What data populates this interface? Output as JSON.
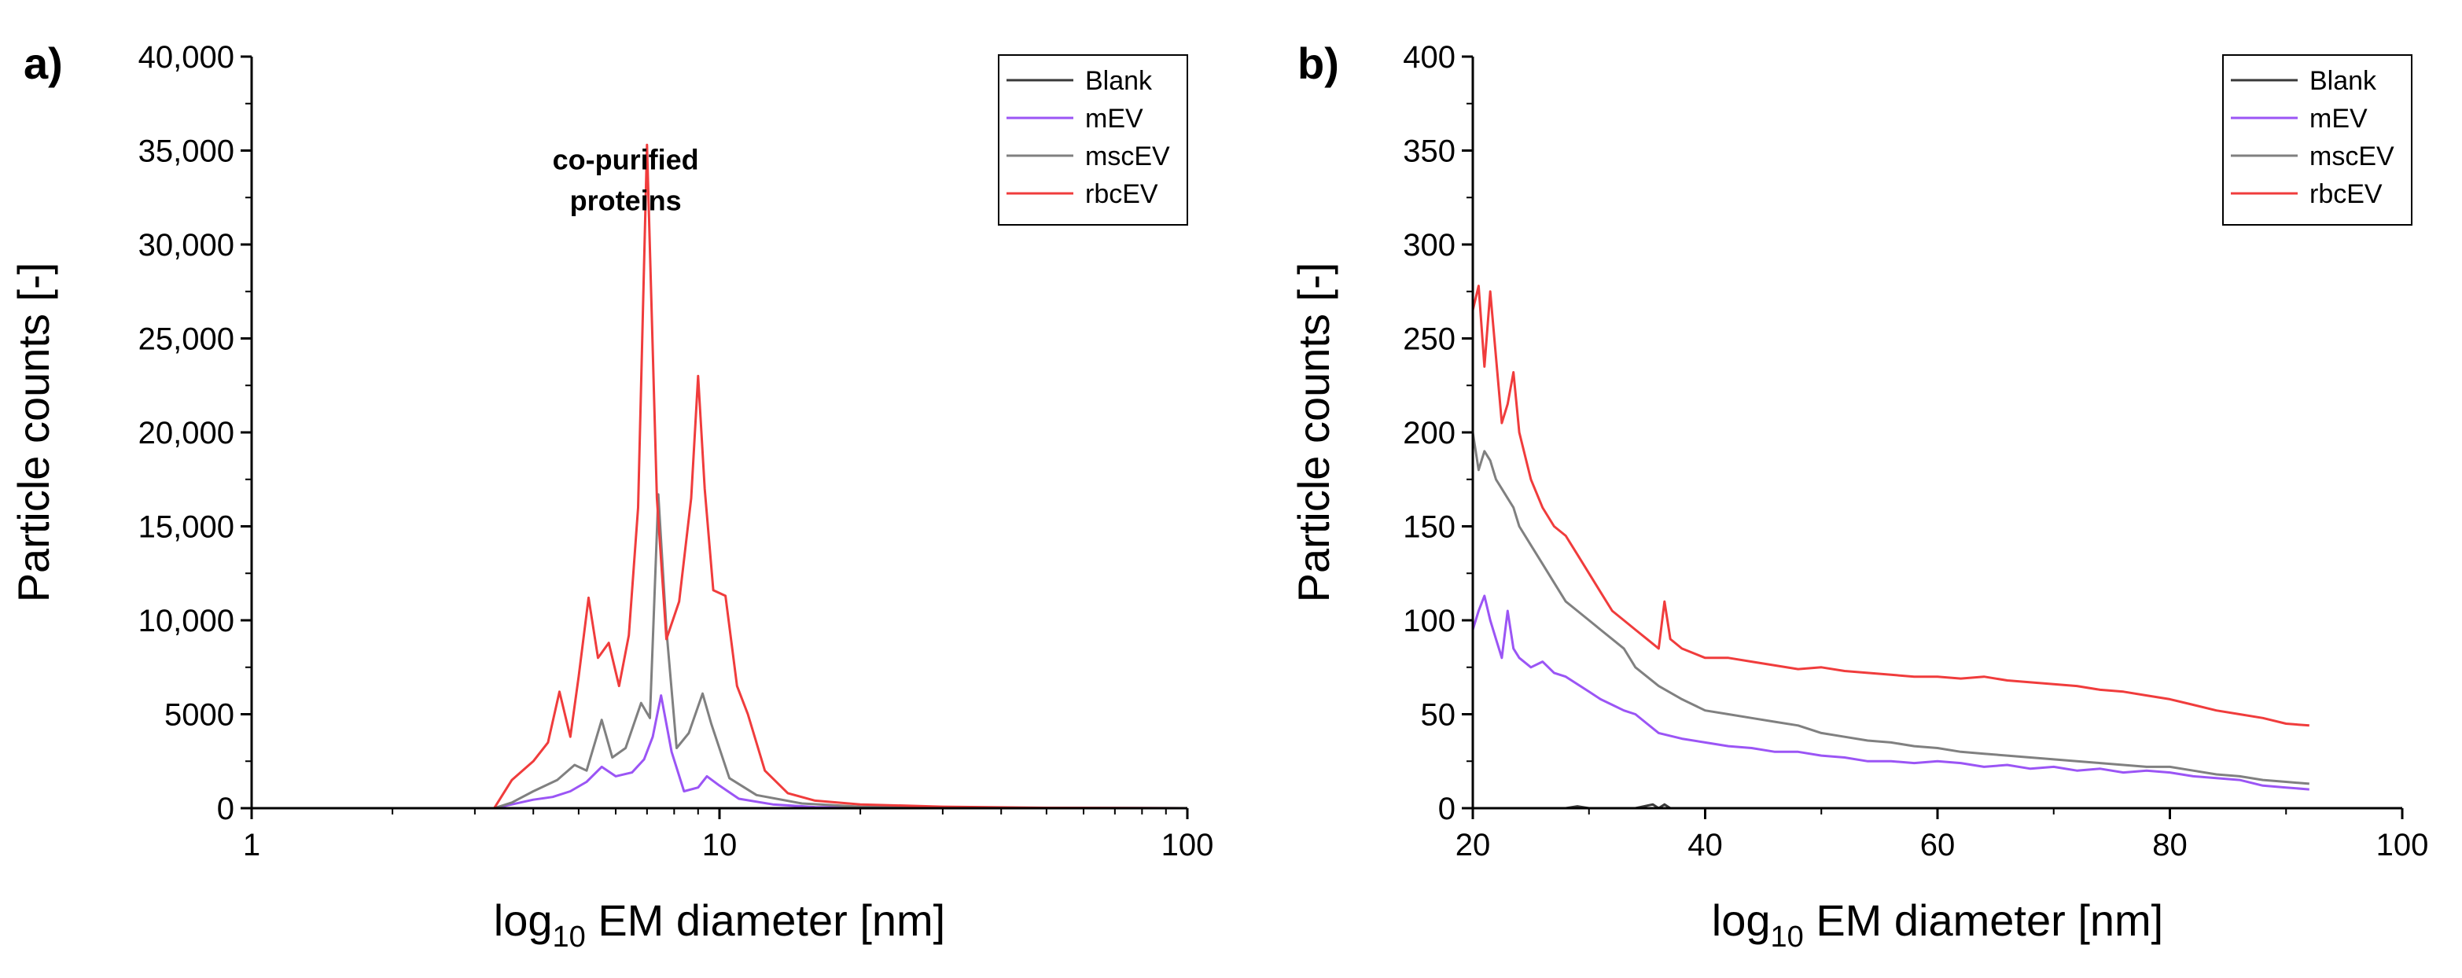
{
  "chart_data": [
    {
      "type": "line",
      "panel_label": "a)",
      "xscale": "log",
      "xlim": [
        1,
        100
      ],
      "ylim": [
        0,
        40000
      ],
      "xlabel_base": "log",
      "xlabel_sub": "10",
      "xlabel_rest": " EM diameter [nm]",
      "ylabel": "Particle counts [-]",
      "x_ticks": [
        1,
        10,
        100
      ],
      "x_tick_labels": [
        "1",
        "10",
        "100"
      ],
      "y_ticks": [
        0,
        5000,
        10000,
        15000,
        20000,
        25000,
        30000,
        35000,
        40000
      ],
      "y_tick_labels": [
        "0",
        "5000",
        "10,000",
        "15,000",
        "20,000",
        "25,000",
        "30,000",
        "35,000",
        "40,000"
      ],
      "legend_position": "top-right",
      "annotation": {
        "lines": [
          "co-purified",
          "proteins"
        ],
        "x": 6.3,
        "y": 34000
      },
      "series": [
        {
          "name": "Blank",
          "color": "#3a3a3a",
          "x": [
            1,
            3,
            100
          ],
          "y": [
            0,
            0,
            0
          ]
        },
        {
          "name": "mEV",
          "color": "#9b55f5",
          "x": [
            3.3,
            3.6,
            4.0,
            4.4,
            4.8,
            5.2,
            5.6,
            6.0,
            6.5,
            6.9,
            7.2,
            7.5,
            7.9,
            8.4,
            9.0,
            9.4,
            10.0,
            11.0,
            13.0,
            16.0,
            25.0,
            50.0,
            100.0
          ],
          "y": [
            0,
            200,
            450,
            600,
            900,
            1400,
            2200,
            1700,
            1900,
            2600,
            3800,
            6000,
            3000,
            900,
            1100,
            1700,
            1200,
            500,
            200,
            60,
            20,
            5,
            0
          ]
        },
        {
          "name": "mscEV",
          "color": "#808080",
          "x": [
            3.3,
            3.6,
            4.0,
            4.5,
            4.9,
            5.2,
            5.6,
            5.9,
            6.3,
            6.8,
            7.1,
            7.4,
            7.7,
            8.1,
            8.6,
            9.2,
            9.6,
            10.5,
            12.0,
            15.0,
            20.0,
            40.0,
            100.0
          ],
          "y": [
            0,
            300,
            900,
            1500,
            2300,
            2000,
            4700,
            2700,
            3200,
            5600,
            4800,
            16700,
            9500,
            3200,
            4000,
            6100,
            4500,
            1600,
            700,
            250,
            80,
            15,
            0
          ]
        },
        {
          "name": "rbcEV",
          "color": "#f03c3c",
          "x": [
            3.3,
            3.6,
            4.0,
            4.3,
            4.55,
            4.8,
            5.0,
            5.25,
            5.5,
            5.8,
            6.1,
            6.4,
            6.7,
            7.0,
            7.35,
            7.7,
            8.2,
            8.7,
            9.0,
            9.3,
            9.7,
            10.3,
            10.9,
            11.5,
            12.5,
            14.0,
            16.0,
            20.0,
            30.0,
            50.0,
            100.0
          ],
          "y": [
            0,
            1500,
            2500,
            3500,
            6200,
            3800,
            7000,
            11200,
            8000,
            8800,
            6500,
            9200,
            16000,
            35300,
            16500,
            9000,
            11000,
            16500,
            23000,
            17000,
            11600,
            11300,
            6500,
            5000,
            2000,
            800,
            400,
            200,
            80,
            20,
            0
          ]
        }
      ]
    },
    {
      "type": "line",
      "panel_label": "b)",
      "xscale": "linear",
      "xlim": [
        20,
        100
      ],
      "ylim": [
        0,
        400
      ],
      "xlabel_base": "log",
      "xlabel_sub": "10",
      "xlabel_rest": " EM diameter [nm]",
      "ylabel": "Particle counts [-]",
      "x_ticks": [
        20,
        40,
        60,
        80,
        100
      ],
      "x_tick_labels": [
        "20",
        "40",
        "60",
        "80",
        "100"
      ],
      "y_ticks": [
        0,
        50,
        100,
        150,
        200,
        250,
        300,
        350,
        400
      ],
      "y_tick_labels": [
        "0",
        "50",
        "100",
        "150",
        "200",
        "250",
        "300",
        "350",
        "400"
      ],
      "legend_position": "top-right",
      "series": [
        {
          "name": "Blank",
          "color": "#3a3a3a",
          "x": [
            20,
            28,
            29,
            30,
            34,
            35.5,
            36,
            36.5,
            37,
            45,
            60,
            80,
            92
          ],
          "y": [
            0,
            0,
            1,
            0,
            0,
            2,
            0,
            2,
            0,
            0,
            0,
            0,
            0
          ]
        },
        {
          "name": "mEV",
          "color": "#9b55f5",
          "x": [
            20,
            20.5,
            21,
            21.5,
            22,
            22.5,
            23,
            23.5,
            24,
            25,
            26,
            27,
            28,
            29,
            30,
            31,
            32,
            33,
            34,
            35,
            36,
            38,
            40,
            42,
            44,
            46,
            48,
            50,
            52,
            54,
            56,
            58,
            60,
            62,
            64,
            66,
            68,
            70,
            72,
            74,
            76,
            78,
            80,
            82,
            84,
            86,
            88,
            90,
            92
          ],
          "y": [
            95,
            105,
            113,
            100,
            90,
            80,
            105,
            85,
            80,
            75,
            78,
            72,
            70,
            66,
            62,
            58,
            55,
            52,
            50,
            45,
            40,
            37,
            35,
            33,
            32,
            30,
            30,
            28,
            27,
            25,
            25,
            24,
            25,
            24,
            22,
            23,
            21,
            22,
            20,
            21,
            19,
            20,
            19,
            17,
            16,
            15,
            12,
            11,
            10
          ]
        },
        {
          "name": "mscEV",
          "color": "#808080",
          "x": [
            20,
            20.5,
            21,
            21.5,
            22,
            22.5,
            23,
            23.5,
            24,
            25,
            26,
            27,
            28,
            29,
            30,
            31,
            32,
            33,
            34,
            35,
            36,
            38,
            40,
            42,
            44,
            46,
            48,
            50,
            52,
            54,
            56,
            58,
            60,
            62,
            64,
            66,
            68,
            70,
            72,
            74,
            76,
            78,
            80,
            82,
            84,
            86,
            88,
            90,
            92
          ],
          "y": [
            200,
            180,
            190,
            185,
            175,
            170,
            165,
            160,
            150,
            140,
            130,
            120,
            110,
            105,
            100,
            95,
            90,
            85,
            75,
            70,
            65,
            58,
            52,
            50,
            48,
            46,
            44,
            40,
            38,
            36,
            35,
            33,
            32,
            30,
            29,
            28,
            27,
            26,
            25,
            24,
            23,
            22,
            22,
            20,
            18,
            17,
            15,
            14,
            13
          ]
        },
        {
          "name": "rbcEV",
          "color": "#f03c3c",
          "x": [
            20,
            20.5,
            21,
            21.5,
            22,
            22.5,
            23,
            23.5,
            24,
            25,
            26,
            27,
            28,
            29,
            30,
            31,
            32,
            33,
            34,
            35,
            36,
            36.5,
            37,
            38,
            40,
            42,
            44,
            46,
            48,
            50,
            52,
            54,
            56,
            58,
            60,
            62,
            64,
            66,
            68,
            70,
            72,
            74,
            76,
            78,
            80,
            82,
            84,
            86,
            88,
            90,
            92
          ],
          "y": [
            265,
            278,
            235,
            275,
            240,
            205,
            215,
            232,
            200,
            175,
            160,
            150,
            145,
            135,
            125,
            115,
            105,
            100,
            95,
            90,
            85,
            110,
            90,
            85,
            80,
            80,
            78,
            76,
            74,
            75,
            73,
            72,
            71,
            70,
            70,
            69,
            70,
            68,
            67,
            66,
            65,
            63,
            62,
            60,
            58,
            55,
            52,
            50,
            48,
            45,
            44
          ]
        }
      ]
    }
  ]
}
